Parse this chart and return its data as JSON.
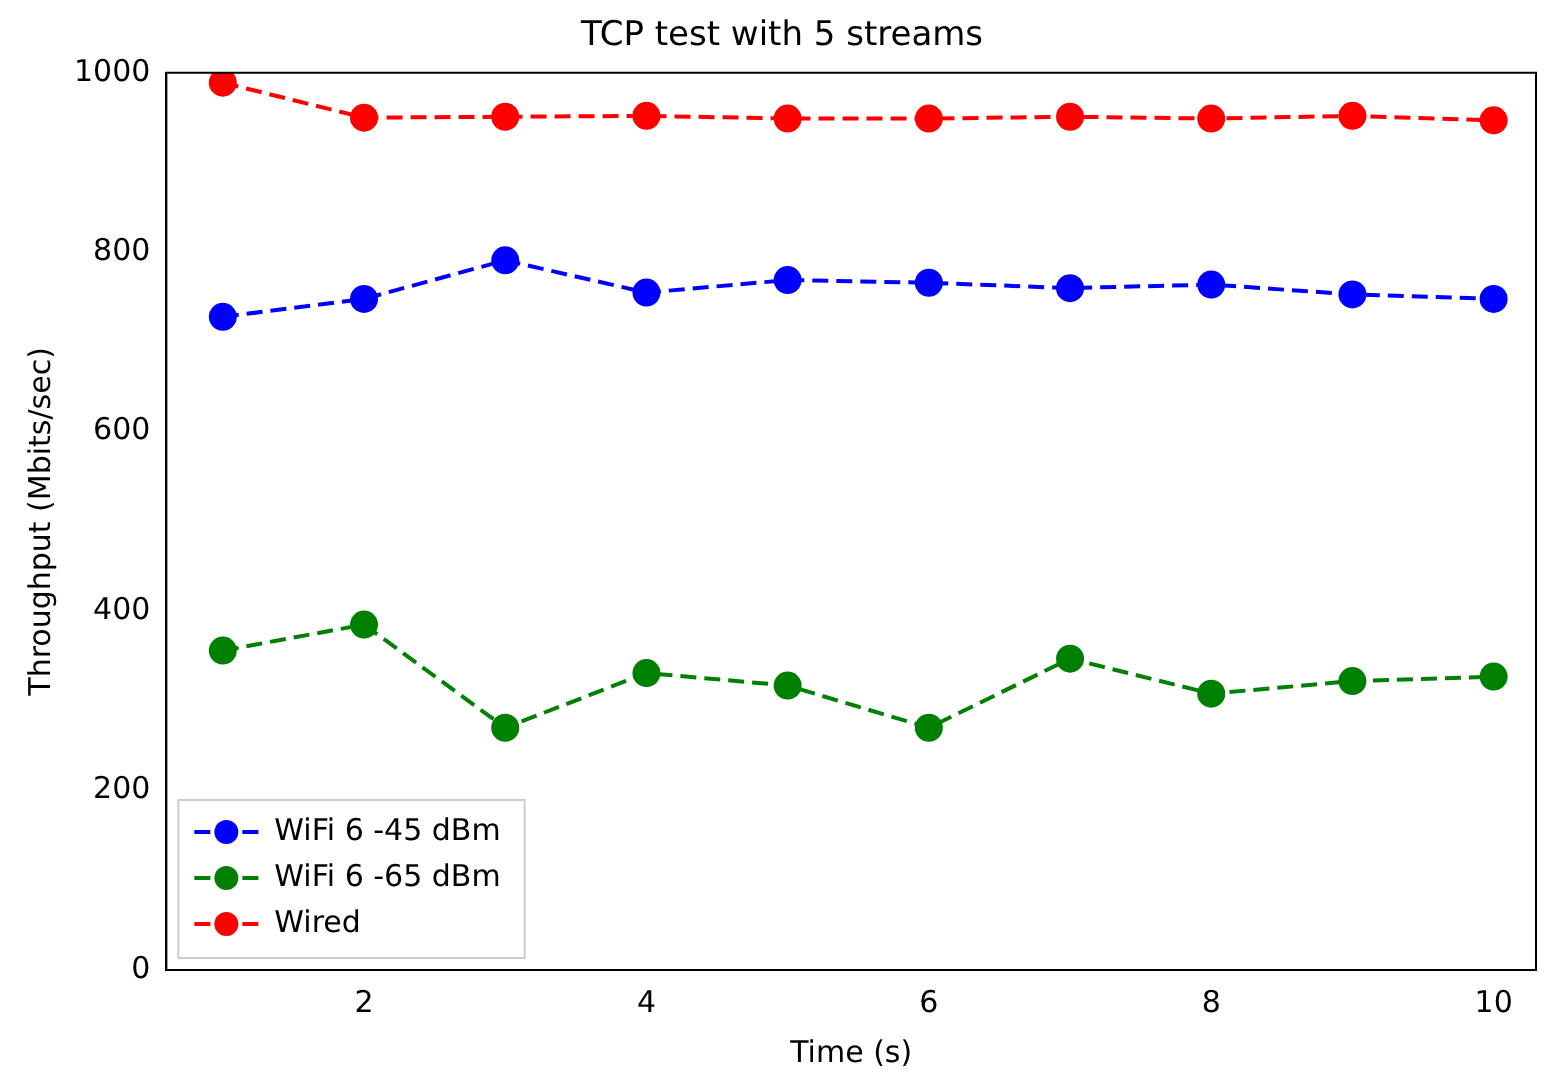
{
  "chart_data": {
    "type": "line",
    "title": "TCP test with 5 streams",
    "xlabel": "Time (s)",
    "ylabel": "Throughput (Mbits/sec)",
    "x": [
      1,
      2,
      3,
      4,
      5,
      6,
      7,
      8,
      9,
      10
    ],
    "series": [
      {
        "name": "WiFi 6 -45 dBm",
        "color": "#0000ff",
        "values": [
          728,
          748,
          791,
          755,
          769,
          766,
          760,
          764,
          753,
          748
        ]
      },
      {
        "name": "WiFi 6 -65 dBm",
        "color": "#008000",
        "values": [
          356,
          385,
          270,
          331,
          317,
          270,
          347,
          308,
          322,
          327
        ]
      },
      {
        "name": "Wired",
        "color": "#ff0000",
        "values": [
          989,
          950,
          951,
          952,
          949,
          949,
          951,
          949,
          952,
          947
        ]
      }
    ],
    "xlim": [
      0.6,
      10.3
    ],
    "xticks": [
      2,
      4,
      6,
      8,
      10
    ],
    "ylim": [
      0,
      1000
    ],
    "yticks": [
      0,
      200,
      400,
      600,
      800,
      1000
    ],
    "grid": false,
    "legend": "bottom left",
    "marker": "circle",
    "line_style": "dashed"
  }
}
